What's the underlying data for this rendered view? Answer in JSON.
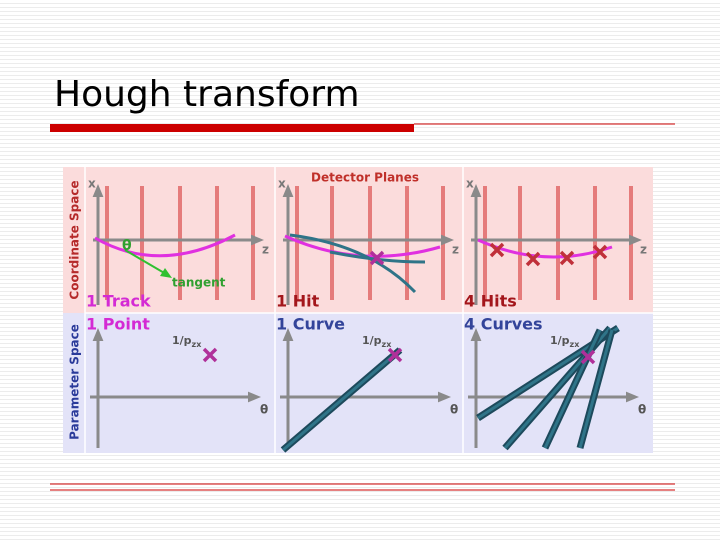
{
  "title": "Hough transform",
  "row_labels": [
    "Coordinate Space",
    "Parameter Space"
  ],
  "panels": [
    {
      "axis_x": "x",
      "axis_z": "z",
      "top_label": "1 Track",
      "bottom_label": "1 Point",
      "param_y": "1/p",
      "param_y_sub": "zx",
      "param_x": "θ",
      "angle": "θ",
      "tangent": "tangent"
    },
    {
      "axis_x": "x",
      "axis_z": "z",
      "header": "Detector Planes",
      "top_label": "1 Hit",
      "bottom_label": "1 Curve",
      "param_y": "1/p",
      "param_y_sub": "zx",
      "param_x": "θ"
    },
    {
      "axis_x": "x",
      "axis_z": "z",
      "top_label": "4 Hits",
      "bottom_label": "4 Curves",
      "param_y": "1/p",
      "param_y_sub": "zx",
      "param_x": "θ"
    }
  ]
}
